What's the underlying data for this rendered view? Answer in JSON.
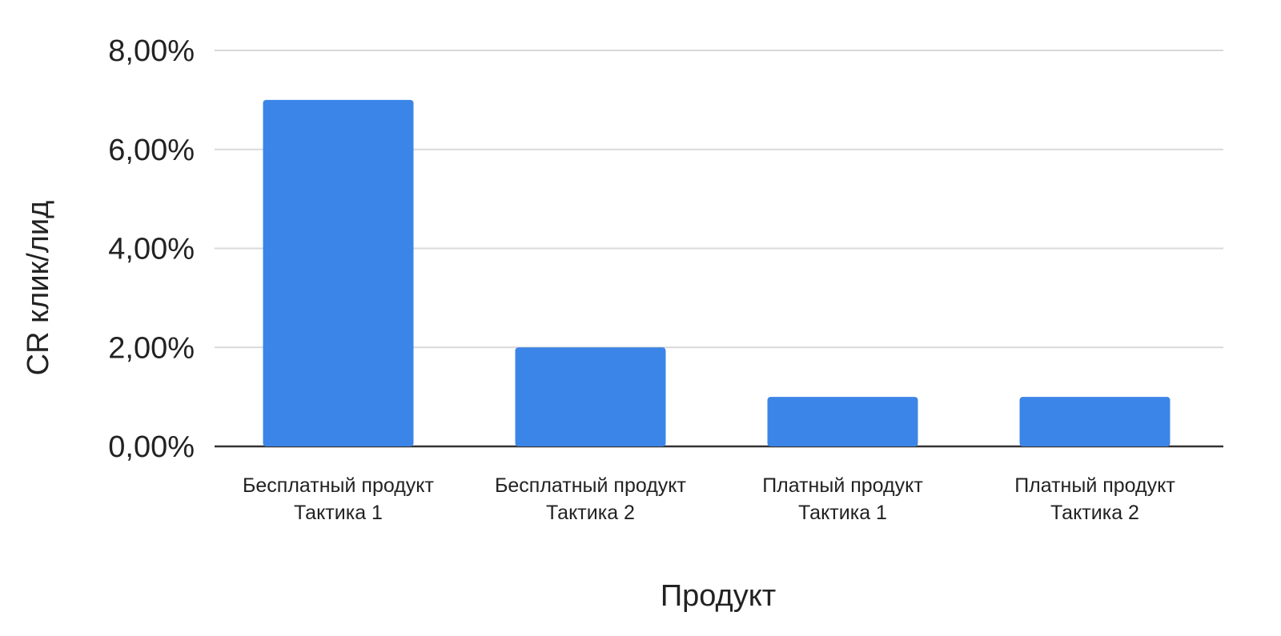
{
  "chart_data": {
    "type": "bar",
    "title": "",
    "xlabel": "Продукт",
    "ylabel": "CR клик/лид",
    "categories": [
      [
        "Бесплатный продукт",
        "Тактика 1"
      ],
      [
        "Бесплатный продукт",
        "Тактика 2"
      ],
      [
        "Платный продукт",
        "Тактика 1"
      ],
      [
        "Платный продукт",
        "Тактика 2"
      ]
    ],
    "values": [
      0.07,
      0.02,
      0.01,
      0.01
    ],
    "ylim": [
      0,
      0.08
    ],
    "yticks": [
      0,
      0.02,
      0.04,
      0.06,
      0.08
    ],
    "ytick_labels": [
      "0,00%",
      "2,00%",
      "4,00%",
      "6,00%",
      "8,00%"
    ],
    "grid": true,
    "legend": "none",
    "colors": {
      "bar": "#3c85e8",
      "gridline": "#d9d9d9",
      "baseline": "#333333",
      "text": "#222222"
    }
  }
}
